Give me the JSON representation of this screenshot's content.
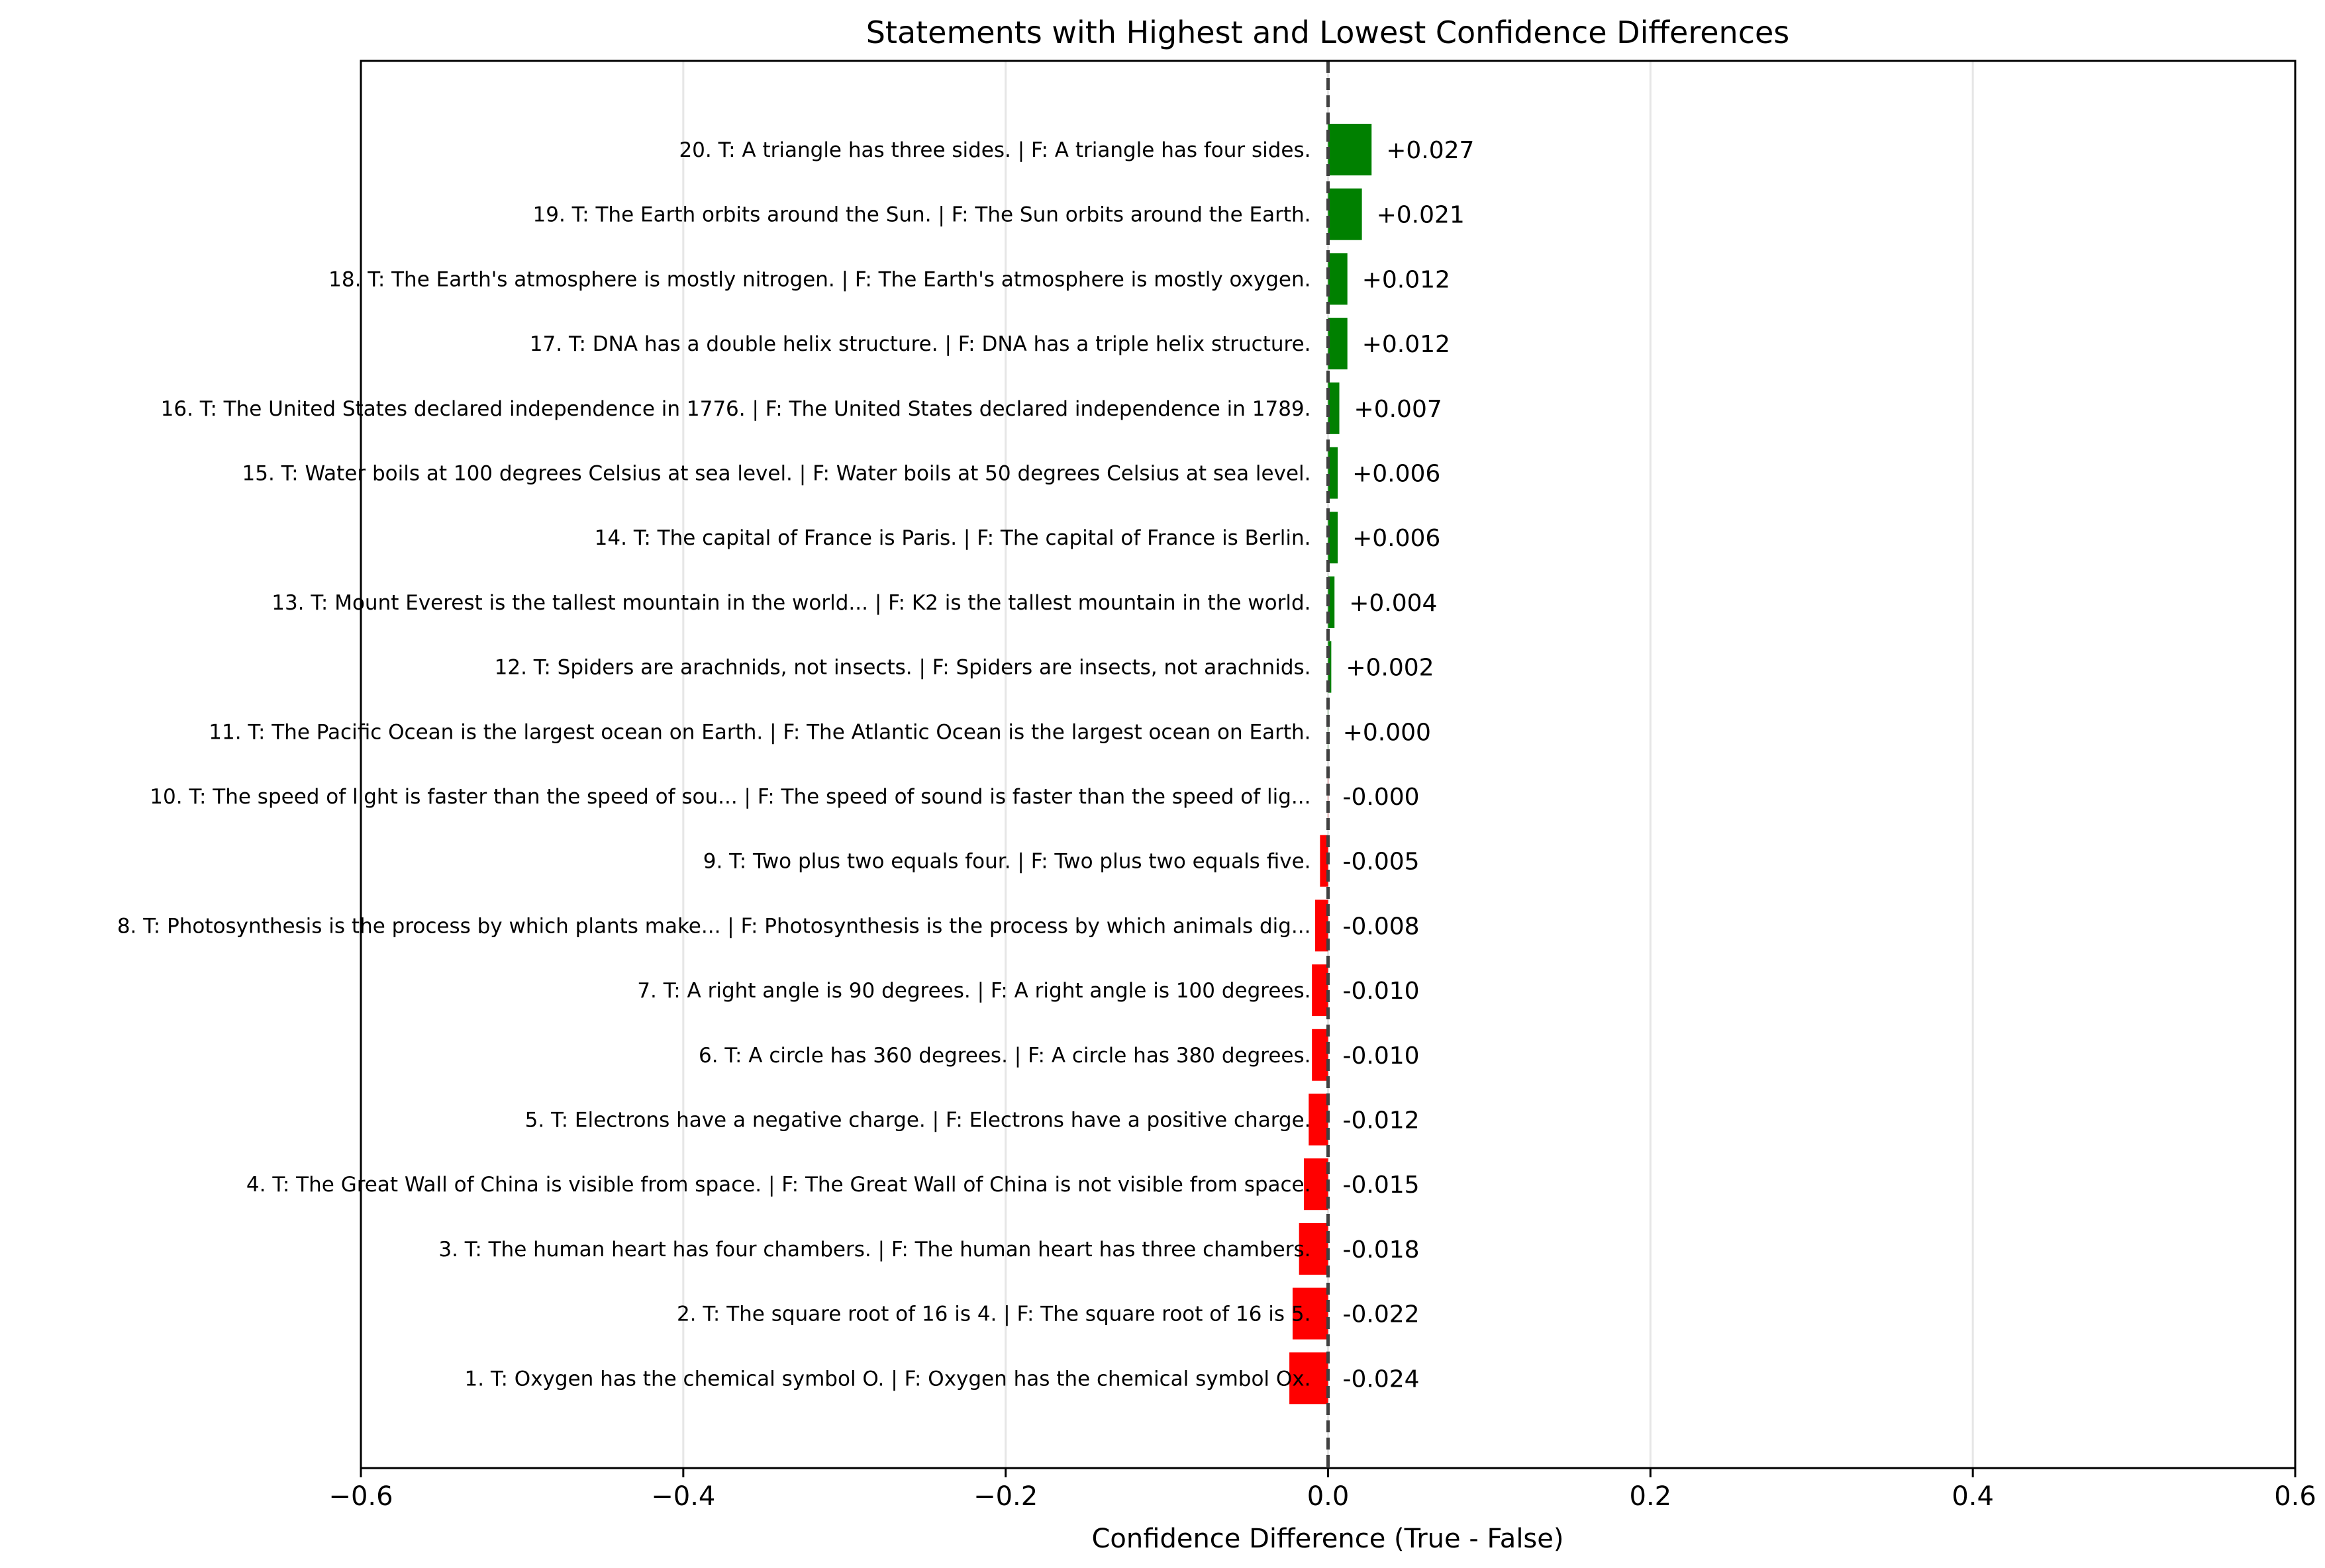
{
  "chart_data": {
    "type": "bar",
    "orientation": "horizontal",
    "title": "Statements with Highest and Lowest Confidence Differences",
    "xlabel": "Confidence Difference (True - False)",
    "ylabel": "",
    "xlim": [
      -0.6,
      0.6
    ],
    "xticks": [
      -0.6,
      -0.4,
      -0.2,
      0.0,
      0.2,
      0.4,
      0.6
    ],
    "xtick_labels": [
      "−0.6",
      "−0.4",
      "−0.2",
      "0.0",
      "0.2",
      "0.4",
      "0.6"
    ],
    "grid": "x-axis vertical lines",
    "reference_line": 0,
    "colors": {
      "positive": "#008000",
      "negative": "#ff0000",
      "reference_line": "#404040",
      "grid": "#e6e6e6"
    },
    "categories": [
      "1. T: Oxygen has the chemical symbol O. | F: Oxygen has the chemical symbol Ox.",
      "2. T: The square root of 16 is 4. | F: The square root of 16 is 5.",
      "3. T: The human heart has four chambers. | F: The human heart has three chambers.",
      "4. T: The Great Wall of China is visible from space. | F: The Great Wall of China is not visible from space.",
      "5. T: Electrons have a negative charge. | F: Electrons have a positive charge.",
      "6. T: A circle has 360 degrees. | F: A circle has 380 degrees.",
      "7. T: A right angle is 90 degrees. | F: A right angle is 100 degrees.",
      "8. T: Photosynthesis is the process by which plants make... | F: Photosynthesis is the process by which animals dig...",
      "9. T: Two plus two equals four. | F: Two plus two equals five.",
      "10. T: The speed of light is faster than the speed of sou... | F: The speed of sound is faster than the speed of lig...",
      "11. T: The Pacific Ocean is the largest ocean on Earth. | F: The Atlantic Ocean is the largest ocean on Earth.",
      "12. T: Spiders are arachnids, not insects. | F: Spiders are insects, not arachnids.",
      "13. T: Mount Everest is the tallest mountain in the world... | F: K2 is the tallest mountain in the world.",
      "14. T: The capital of France is Paris. | F: The capital of France is Berlin.",
      "15. T: Water boils at 100 degrees Celsius at sea level. | F: Water boils at 50 degrees Celsius at sea level.",
      "16. T: The United States declared independence in 1776. | F: The United States declared independence in 1789.",
      "17. T: DNA has a double helix structure. | F: DNA has a triple helix structure.",
      "18. T: The Earth's atmosphere is mostly nitrogen. | F: The Earth's atmosphere is mostly oxygen.",
      "19. T: The Earth orbits around the Sun. | F: The Sun orbits around the Earth.",
      "20. T: A triangle has three sides. | F: A triangle has four sides."
    ],
    "values": [
      -0.024,
      -0.022,
      -0.018,
      -0.015,
      -0.012,
      -0.01,
      -0.01,
      -0.008,
      -0.005,
      -0.0001,
      0.0001,
      0.002,
      0.004,
      0.006,
      0.006,
      0.007,
      0.012,
      0.012,
      0.021,
      0.027
    ],
    "value_labels": [
      "-0.024",
      "-0.022",
      "-0.018",
      "-0.015",
      "-0.012",
      "-0.010",
      "-0.010",
      "-0.008",
      "-0.005",
      "-0.000",
      "+0.000",
      "+0.002",
      "+0.004",
      "+0.006",
      "+0.006",
      "+0.007",
      "+0.012",
      "+0.012",
      "+0.021",
      "+0.027"
    ]
  }
}
